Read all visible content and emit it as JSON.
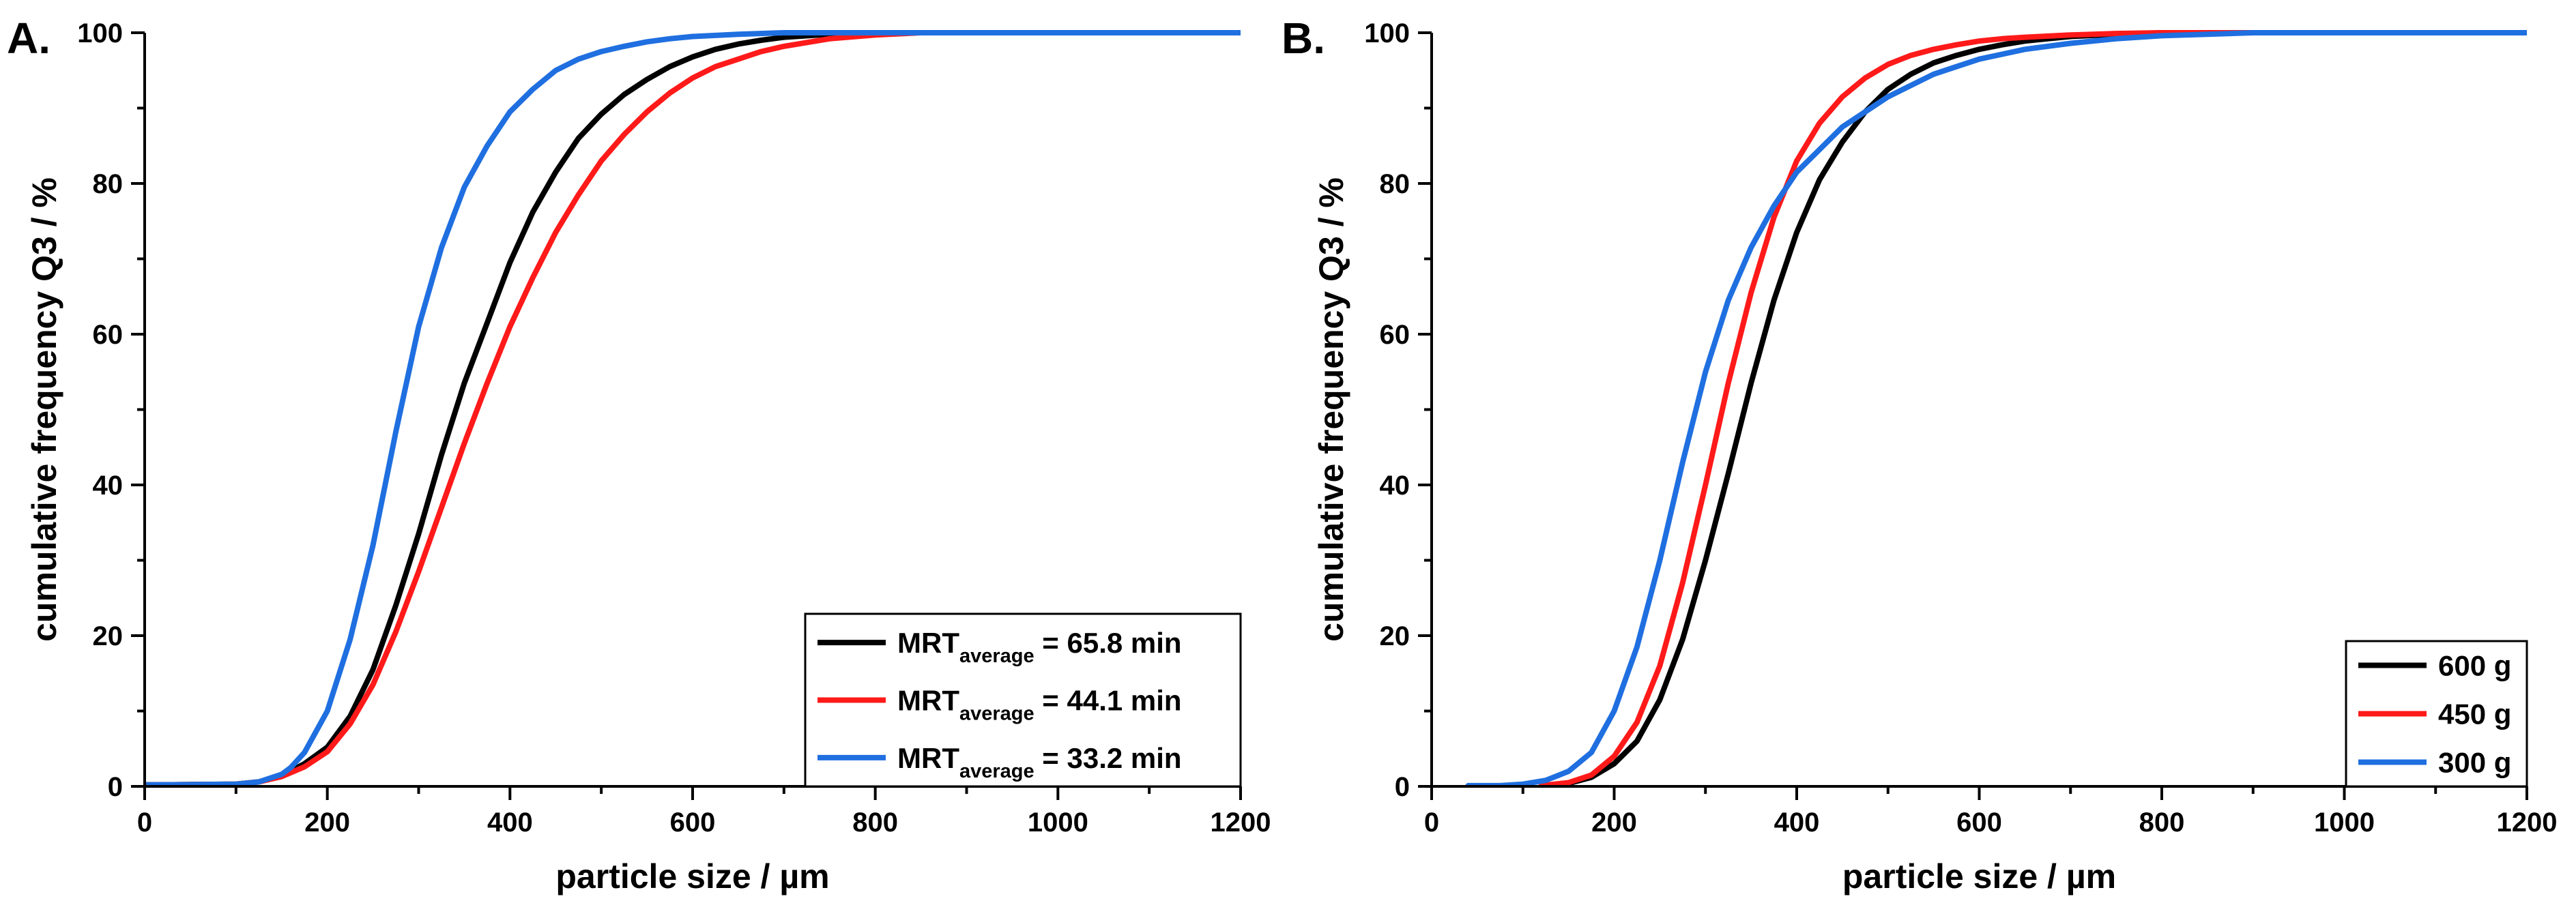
{
  "figure": {
    "panels": [
      {
        "id": "A",
        "label": "A."
      },
      {
        "id": "B",
        "label": "B."
      }
    ]
  },
  "chart_data": [
    {
      "type": "line",
      "panel": "A.",
      "xlabel": "particle size / µm",
      "ylabel": "cumulative frequency Q3 / %",
      "xlim": [
        0,
        1200
      ],
      "ylim": [
        0,
        100
      ],
      "xticks": [
        0,
        200,
        400,
        600,
        800,
        1000,
        1200
      ],
      "yticks": [
        0,
        20,
        40,
        60,
        80,
        100
      ],
      "grid": false,
      "legend_position": "bottom-right",
      "legend_label_parts": [
        "MRT",
        "average",
        " = "
      ],
      "series": [
        {
          "name": "MRTaverage = 65.8 min",
          "legend": {
            "main": "MRT",
            "sub": "average",
            "value": "65.8 min"
          },
          "color": "#000000",
          "x": [
            0,
            100,
            125,
            150,
            175,
            200,
            225,
            250,
            275,
            300,
            325,
            350,
            375,
            400,
            425,
            450,
            475,
            500,
            525,
            550,
            575,
            600,
            625,
            650,
            675,
            700,
            750,
            800,
            850,
            900,
            1000,
            1100,
            1200
          ],
          "y": [
            0.2,
            0.3,
            0.6,
            1.4,
            3,
            5.2,
            9.3,
            15.5,
            24,
            33.5,
            44,
            53.5,
            61.5,
            69.5,
            76.2,
            81.5,
            86,
            89.2,
            91.8,
            93.8,
            95.5,
            96.8,
            97.8,
            98.5,
            99,
            99.4,
            99.8,
            100,
            100,
            100,
            100,
            100,
            100
          ]
        },
        {
          "name": "MRTaverage = 44.1 min",
          "legend": {
            "main": "MRT",
            "sub": "average",
            "value": "44.1 min"
          },
          "color": "#ff1a1a",
          "x": [
            0,
            100,
            125,
            150,
            175,
            200,
            225,
            250,
            275,
            300,
            325,
            350,
            375,
            400,
            425,
            450,
            475,
            500,
            525,
            550,
            575,
            600,
            625,
            650,
            675,
            700,
            750,
            800,
            850,
            900,
            1000,
            1100,
            1200
          ],
          "y": [
            0.2,
            0.3,
            0.6,
            1.3,
            2.6,
            4.6,
            8.3,
            13.5,
            20.5,
            28.5,
            37,
            45.5,
            53.5,
            61,
            67.5,
            73.5,
            78.5,
            83,
            86.5,
            89.5,
            92,
            94,
            95.5,
            96.5,
            97.5,
            98.2,
            99.2,
            99.7,
            100,
            100,
            100,
            100,
            100
          ]
        },
        {
          "name": "MRTaverage = 33.2 min",
          "legend": {
            "main": "MRT",
            "sub": "average",
            "value": "33.2 min"
          },
          "color": "#1f6fe0",
          "x": [
            0,
            100,
            125,
            150,
            160,
            175,
            200,
            225,
            250,
            275,
            300,
            325,
            350,
            375,
            400,
            425,
            450,
            475,
            500,
            525,
            550,
            575,
            600,
            650,
            700,
            750,
            800,
            900,
            1000,
            1100,
            1200
          ],
          "y": [
            0.2,
            0.3,
            0.6,
            1.6,
            2.5,
            4.5,
            10,
            19.5,
            32,
            47,
            61,
            71.5,
            79.5,
            85,
            89.5,
            92.5,
            95,
            96.5,
            97.5,
            98.2,
            98.8,
            99.2,
            99.5,
            99.8,
            100,
            100,
            100,
            100,
            100,
            100,
            100
          ]
        }
      ]
    },
    {
      "type": "line",
      "panel": "B.",
      "xlabel": "particle size / µm",
      "ylabel": "cumulative frequency Q3 / %",
      "xlim": [
        0,
        1200
      ],
      "ylim": [
        0,
        100
      ],
      "xticks": [
        0,
        200,
        400,
        600,
        800,
        1000,
        1200
      ],
      "yticks": [
        0,
        20,
        40,
        60,
        80,
        100
      ],
      "grid": false,
      "legend_position": "bottom-right",
      "series": [
        {
          "name": "600 g",
          "color": "#000000",
          "x": [
            130,
            150,
            175,
            200,
            225,
            250,
            275,
            300,
            325,
            350,
            375,
            400,
            425,
            450,
            475,
            500,
            525,
            550,
            575,
            600,
            625,
            650,
            675,
            700,
            750,
            800,
            850,
            900,
            1000,
            1200
          ],
          "y": [
            0.1,
            0.4,
            1.2,
            3,
            6,
            11.5,
            19.5,
            30,
            41.5,
            53.5,
            64.5,
            73.5,
            80.5,
            85.5,
            89.5,
            92.5,
            94.5,
            96,
            97,
            97.8,
            98.4,
            98.9,
            99.2,
            99.5,
            99.8,
            100,
            100,
            100,
            100,
            100
          ]
        },
        {
          "name": "450 g",
          "color": "#ff1a1a",
          "x": [
            120,
            150,
            175,
            200,
            225,
            250,
            275,
            300,
            325,
            350,
            375,
            400,
            425,
            450,
            475,
            500,
            525,
            550,
            575,
            600,
            625,
            650,
            700,
            750,
            800,
            900,
            1000,
            1200
          ],
          "y": [
            0.1,
            0.5,
            1.5,
            4,
            8.5,
            16,
            27,
            40,
            53.5,
            65.5,
            75.5,
            83,
            88,
            91.5,
            94,
            95.8,
            97,
            97.8,
            98.4,
            98.9,
            99.2,
            99.4,
            99.7,
            99.9,
            100,
            100,
            100,
            100
          ]
        },
        {
          "name": "300 g",
          "color": "#1f6fe0",
          "x": [
            40,
            75,
            100,
            125,
            150,
            175,
            200,
            225,
            250,
            275,
            300,
            325,
            350,
            375,
            400,
            425,
            450,
            475,
            500,
            525,
            550,
            575,
            600,
            650,
            700,
            750,
            800,
            850,
            900,
            1000,
            1100,
            1200
          ],
          "y": [
            0.1,
            0.1,
            0.3,
            0.8,
            2,
            4.5,
            10,
            18.5,
            30,
            43,
            55,
            64.5,
            71.5,
            77,
            81.5,
            84.5,
            87.5,
            89.5,
            91.5,
            93,
            94.5,
            95.5,
            96.5,
            97.8,
            98.6,
            99.2,
            99.6,
            99.8,
            100,
            100,
            100,
            100
          ]
        }
      ]
    }
  ]
}
